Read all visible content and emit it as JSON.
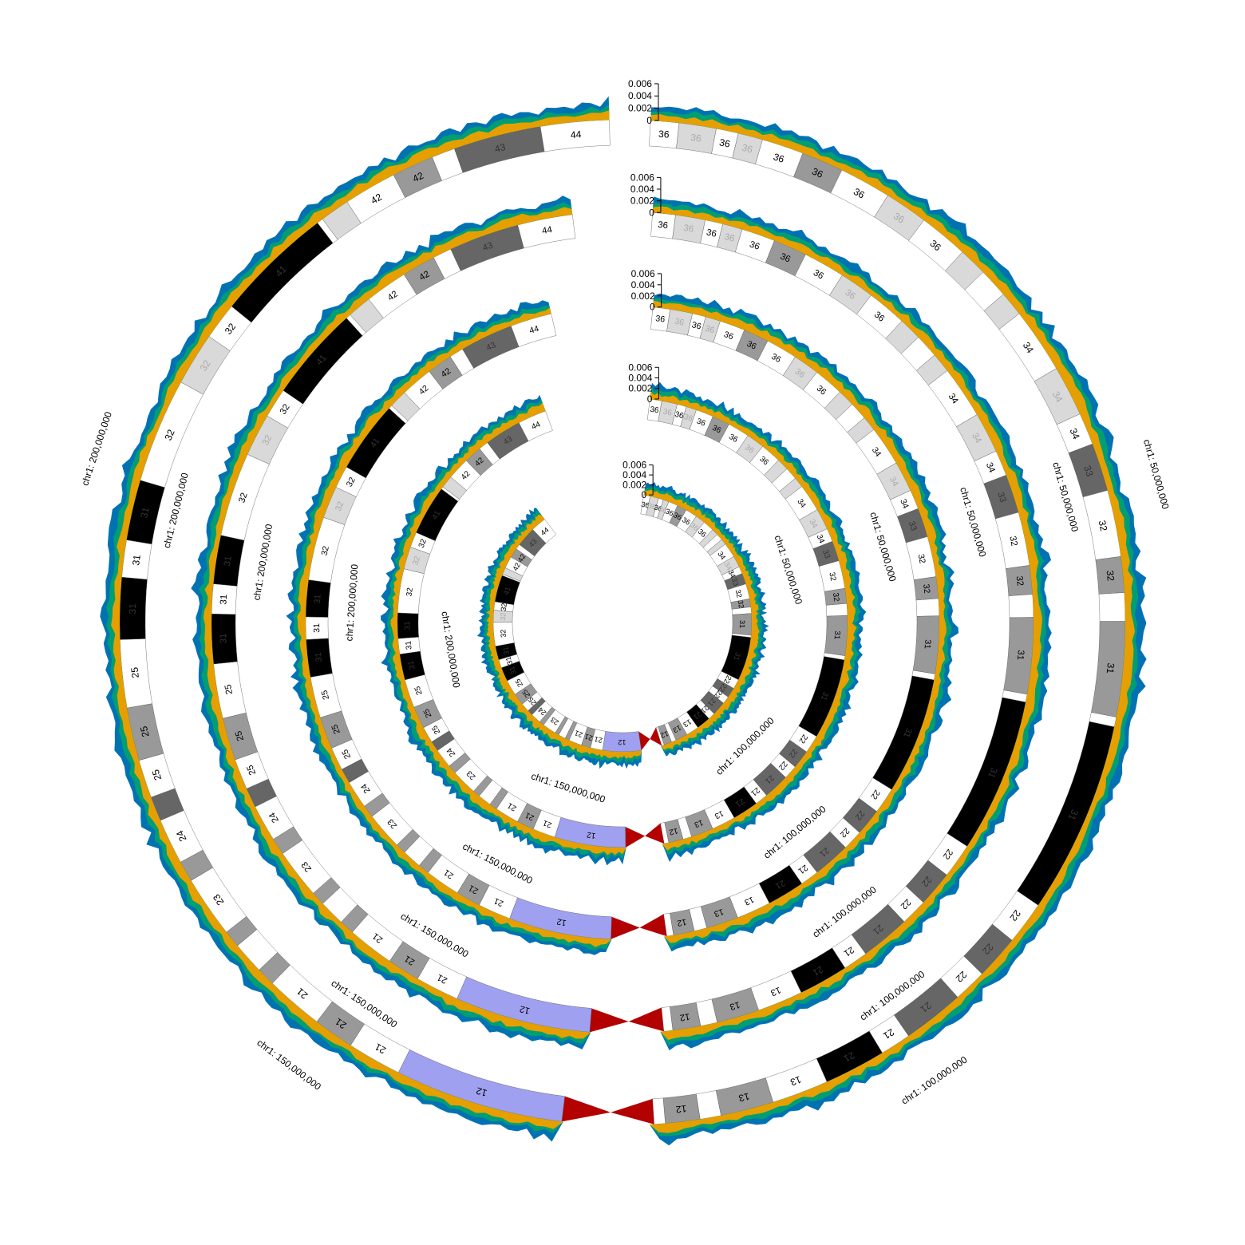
{
  "chromosome": "chr1",
  "axis": {
    "ticks": [
      "0.006",
      "0.004",
      "0.002",
      "0"
    ],
    "max": 0.006
  },
  "genome_labels": [
    "chr1: 50,000,000",
    "chr1: 100,000,000",
    "chr1: 150,000,000",
    "chr1: 200,000,000"
  ],
  "series_colors": [
    "#E69F00",
    "#009E73",
    "#0072B2"
  ],
  "band_palette": {
    "gneg": "#FFFFFF",
    "gpos25": "#D9D9D9",
    "gpos50": "#999999",
    "gpos75": "#666666",
    "gpos100": "#000000",
    "acen": "#B30000",
    "gvar": "#A0A0F0"
  },
  "chromosome_length_bp": 249250621,
  "ideogram": [
    {
      "start_mb": 0.0,
      "end_mb": 2.3,
      "name": "36",
      "stain": "gneg"
    },
    {
      "start_mb": 2.3,
      "end_mb": 5.3,
      "name": "36",
      "stain": "gpos25"
    },
    {
      "start_mb": 5.3,
      "end_mb": 7.1,
      "name": "36",
      "stain": "gneg"
    },
    {
      "start_mb": 7.1,
      "end_mb": 9.1,
      "name": "36",
      "stain": "gpos25"
    },
    {
      "start_mb": 9.1,
      "end_mb": 12.5,
      "name": "36",
      "stain": "gneg"
    },
    {
      "start_mb": 12.5,
      "end_mb": 15.9,
      "name": "36",
      "stain": "gpos50"
    },
    {
      "start_mb": 15.9,
      "end_mb": 20.1,
      "name": "36",
      "stain": "gneg"
    },
    {
      "start_mb": 20.1,
      "end_mb": 23.6,
      "name": "36",
      "stain": "gpos25"
    },
    {
      "start_mb": 23.6,
      "end_mb": 27.6,
      "name": "36",
      "stain": "gneg"
    },
    {
      "start_mb": 27.6,
      "end_mb": 29.9,
      "name": "",
      "stain": "gpos25"
    },
    {
      "start_mb": 29.9,
      "end_mb": 32.3,
      "name": "",
      "stain": "gneg"
    },
    {
      "start_mb": 32.3,
      "end_mb": 34.3,
      "name": "",
      "stain": "gpos25"
    },
    {
      "start_mb": 34.3,
      "end_mb": 39.6,
      "name": "34",
      "stain": "gneg"
    },
    {
      "start_mb": 39.6,
      "end_mb": 43.7,
      "name": "34",
      "stain": "gpos25"
    },
    {
      "start_mb": 43.7,
      "end_mb": 46.3,
      "name": "34",
      "stain": "gneg"
    },
    {
      "start_mb": 46.3,
      "end_mb": 50.2,
      "name": "33",
      "stain": "gpos75"
    },
    {
      "start_mb": 50.2,
      "end_mb": 55.6,
      "name": "32",
      "stain": "gneg"
    },
    {
      "start_mb": 55.6,
      "end_mb": 58.5,
      "name": "32",
      "stain": "gpos50"
    },
    {
      "start_mb": 58.5,
      "end_mb": 60.8,
      "name": "",
      "stain": "gneg"
    },
    {
      "start_mb": 60.8,
      "end_mb": 68.5,
      "name": "31",
      "stain": "gpos50"
    },
    {
      "start_mb": 68.5,
      "end_mb": 69.3,
      "name": "",
      "stain": "gneg"
    },
    {
      "start_mb": 69.3,
      "end_mb": 84.9,
      "name": "31",
      "stain": "gpos100"
    },
    {
      "start_mb": 84.9,
      "end_mb": 88.4,
      "name": "22",
      "stain": "gneg"
    },
    {
      "start_mb": 88.4,
      "end_mb": 92.0,
      "name": "22",
      "stain": "gpos75"
    },
    {
      "start_mb": 92.0,
      "end_mb": 94.7,
      "name": "22",
      "stain": "gneg"
    },
    {
      "start_mb": 94.7,
      "end_mb": 99.7,
      "name": "21",
      "stain": "gpos75"
    },
    {
      "start_mb": 99.7,
      "end_mb": 102.2,
      "name": "21",
      "stain": "gneg"
    },
    {
      "start_mb": 102.2,
      "end_mb": 107.2,
      "name": "21",
      "stain": "gpos100"
    },
    {
      "start_mb": 107.2,
      "end_mb": 111.8,
      "name": "13",
      "stain": "gneg"
    },
    {
      "start_mb": 111.8,
      "end_mb": 116.1,
      "name": "13",
      "stain": "gpos50"
    },
    {
      "start_mb": 116.1,
      "end_mb": 117.8,
      "name": "",
      "stain": "gneg"
    },
    {
      "start_mb": 117.8,
      "end_mb": 120.6,
      "name": "12",
      "stain": "gpos50"
    },
    {
      "start_mb": 120.6,
      "end_mb": 121.5,
      "name": "",
      "stain": "gneg"
    },
    {
      "start_mb": 121.5,
      "end_mb": 125.0,
      "name": "",
      "stain": "acen"
    },
    {
      "start_mb": 125.0,
      "end_mb": 128.9,
      "name": "",
      "stain": "acen"
    },
    {
      "start_mb": 128.9,
      "end_mb": 142.6,
      "name": "12",
      "stain": "gvar"
    },
    {
      "start_mb": 142.6,
      "end_mb": 147.0,
      "name": "21",
      "stain": "gneg"
    },
    {
      "start_mb": 147.0,
      "end_mb": 150.3,
      "name": "21",
      "stain": "gpos50"
    },
    {
      "start_mb": 150.3,
      "end_mb": 155.0,
      "name": "21",
      "stain": "gneg"
    },
    {
      "start_mb": 155.0,
      "end_mb": 156.5,
      "name": "",
      "stain": "gpos50"
    },
    {
      "start_mb": 156.5,
      "end_mb": 159.1,
      "name": "",
      "stain": "gneg"
    },
    {
      "start_mb": 159.1,
      "end_mb": 160.5,
      "name": "",
      "stain": "gpos50"
    },
    {
      "start_mb": 160.5,
      "end_mb": 165.5,
      "name": "23",
      "stain": "gneg"
    },
    {
      "start_mb": 165.5,
      "end_mb": 167.2,
      "name": "",
      "stain": "gpos50"
    },
    {
      "start_mb": 167.2,
      "end_mb": 170.9,
      "name": "24",
      "stain": "gneg"
    },
    {
      "start_mb": 170.9,
      "end_mb": 172.9,
      "name": "",
      "stain": "gpos75"
    },
    {
      "start_mb": 172.9,
      "end_mb": 176.0,
      "name": "25",
      "stain": "gneg"
    },
    {
      "start_mb": 176.0,
      "end_mb": 180.3,
      "name": "25",
      "stain": "gpos50"
    },
    {
      "start_mb": 180.3,
      "end_mb": 185.8,
      "name": "25",
      "stain": "gneg"
    },
    {
      "start_mb": 185.8,
      "end_mb": 190.8,
      "name": "31",
      "stain": "gpos100"
    },
    {
      "start_mb": 190.8,
      "end_mb": 193.8,
      "name": "31",
      "stain": "gneg"
    },
    {
      "start_mb": 193.8,
      "end_mb": 198.7,
      "name": "31",
      "stain": "gpos100"
    },
    {
      "start_mb": 198.7,
      "end_mb": 207.2,
      "name": "32",
      "stain": "gneg"
    },
    {
      "start_mb": 207.2,
      "end_mb": 211.5,
      "name": "32",
      "stain": "gpos25"
    },
    {
      "start_mb": 211.5,
      "end_mb": 214.5,
      "name": "32",
      "stain": "gneg"
    },
    {
      "start_mb": 214.5,
      "end_mb": 224.1,
      "name": "41",
      "stain": "gpos100"
    },
    {
      "start_mb": 224.1,
      "end_mb": 224.6,
      "name": "",
      "stain": "gneg"
    },
    {
      "start_mb": 224.6,
      "end_mb": 227.0,
      "name": "",
      "stain": "gpos25"
    },
    {
      "start_mb": 227.0,
      "end_mb": 231.3,
      "name": "42",
      "stain": "gneg"
    },
    {
      "start_mb": 231.3,
      "end_mb": 234.7,
      "name": "42",
      "stain": "gpos50"
    },
    {
      "start_mb": 234.7,
      "end_mb": 236.6,
      "name": "",
      "stain": "gneg"
    },
    {
      "start_mb": 236.6,
      "end_mb": 243.7,
      "name": "43",
      "stain": "gpos75"
    },
    {
      "start_mb": 243.7,
      "end_mb": 249.25,
      "name": "44",
      "stain": "gneg"
    }
  ],
  "tracks": [
    {
      "id": "track-1",
      "seed": 11,
      "offset": 1.0
    },
    {
      "id": "track-2",
      "seed": 23,
      "offset": 0.96
    },
    {
      "id": "track-3",
      "seed": 37,
      "offset": 0.92
    },
    {
      "id": "track-4",
      "seed": 41,
      "offset": 0.88
    },
    {
      "id": "track-5",
      "seed": 53,
      "offset": 0.84
    }
  ]
}
